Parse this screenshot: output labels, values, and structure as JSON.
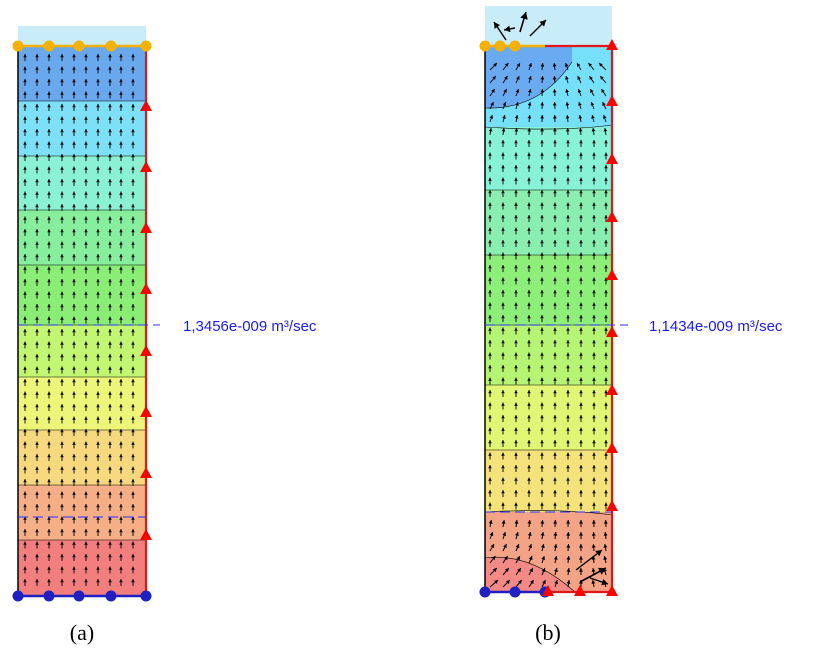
{
  "panels": [
    {
      "id": "a",
      "caption": "(a)",
      "flux_label": "1,3456e-009 m³/sec",
      "contour_colors": [
        "#6aa8ee",
        "#7ee0f6",
        "#8af2d2",
        "#86ee9c",
        "#8aee76",
        "#c2f672",
        "#eef67a",
        "#f6d97e",
        "#f6ae86",
        "#f27e7e"
      ]
    },
    {
      "id": "b",
      "caption": "(b)",
      "flux_label": "1,1434e-009 m³/sec",
      "contour_colors": [
        "#6aaaf0",
        "#76e0fa",
        "#88f2d6",
        "#8aeeb0",
        "#8aee8c",
        "#8eee7a",
        "#b6f474",
        "#e2f676",
        "#f4e27a",
        "#f6c680",
        "#f4a486"
      ]
    }
  ],
  "colors": {
    "seepage_face": "#f5b000",
    "fixed_head": "#2020c0",
    "no_flow_marker": "#ff0000",
    "flux_line": "#2f2fff",
    "reservoir": "#c8ecf8"
  }
}
